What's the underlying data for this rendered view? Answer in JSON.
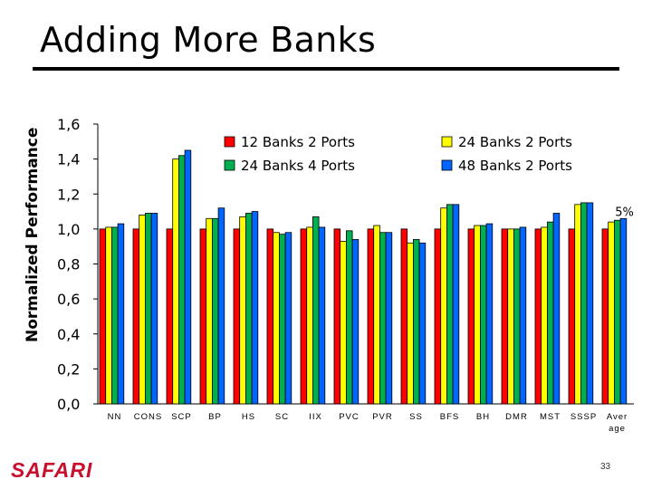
{
  "slide": {
    "title": "Adding More Banks",
    "logo": "SAFARI",
    "page_number": "33"
  },
  "chart_data": {
    "type": "bar",
    "title": "",
    "xlabel": "",
    "ylabel": "Normalized Performance",
    "ylim": [
      0,
      1.6
    ],
    "yticks": [
      "0,0",
      "0,2",
      "0,4",
      "0,6",
      "0,8",
      "1,0",
      "1,2",
      "1,4",
      "1,6"
    ],
    "categories": [
      "NN",
      "CONS",
      "SCP",
      "BP",
      "HS",
      "SC",
      "IIX",
      "PVC",
      "PVR",
      "SS",
      "BFS",
      "BH",
      "DMR",
      "MST",
      "SSSP",
      "Aver age"
    ],
    "series": [
      {
        "name": "12 Banks 2 Ports",
        "color": "#ff0000",
        "values": [
          1.0,
          1.0,
          1.0,
          1.0,
          1.0,
          1.0,
          1.0,
          1.0,
          1.0,
          1.0,
          1.0,
          1.0,
          1.0,
          1.0,
          1.0,
          1.0
        ]
      },
      {
        "name": "24 Banks 2 Ports",
        "color": "#ffff00",
        "values": [
          1.01,
          1.08,
          1.4,
          1.06,
          1.07,
          0.98,
          1.01,
          0.93,
          1.02,
          0.92,
          1.12,
          1.02,
          1.0,
          1.01,
          1.14,
          1.04
        ]
      },
      {
        "name": "24 Banks 4 Ports",
        "color": "#00b050",
        "values": [
          1.01,
          1.09,
          1.42,
          1.06,
          1.09,
          0.97,
          1.07,
          0.99,
          0.98,
          0.94,
          1.14,
          1.02,
          1.0,
          1.04,
          1.15,
          1.05
        ]
      },
      {
        "name": "48 Banks 2 Ports",
        "color": "#0066ff",
        "values": [
          1.03,
          1.09,
          1.45,
          1.12,
          1.1,
          0.98,
          1.01,
          0.94,
          0.98,
          0.92,
          1.14,
          1.03,
          1.01,
          1.09,
          1.15,
          1.06
        ]
      }
    ],
    "legend": {
      "placement": "top",
      "columns": 2,
      "order": [
        "12 Banks 2 Ports",
        "24 Banks 2 Ports",
        "24 Banks 4 Ports",
        "48 Banks 2 Ports"
      ]
    },
    "annotations": [
      {
        "text": "5%",
        "category": "Aver age"
      }
    ],
    "grid": false
  }
}
